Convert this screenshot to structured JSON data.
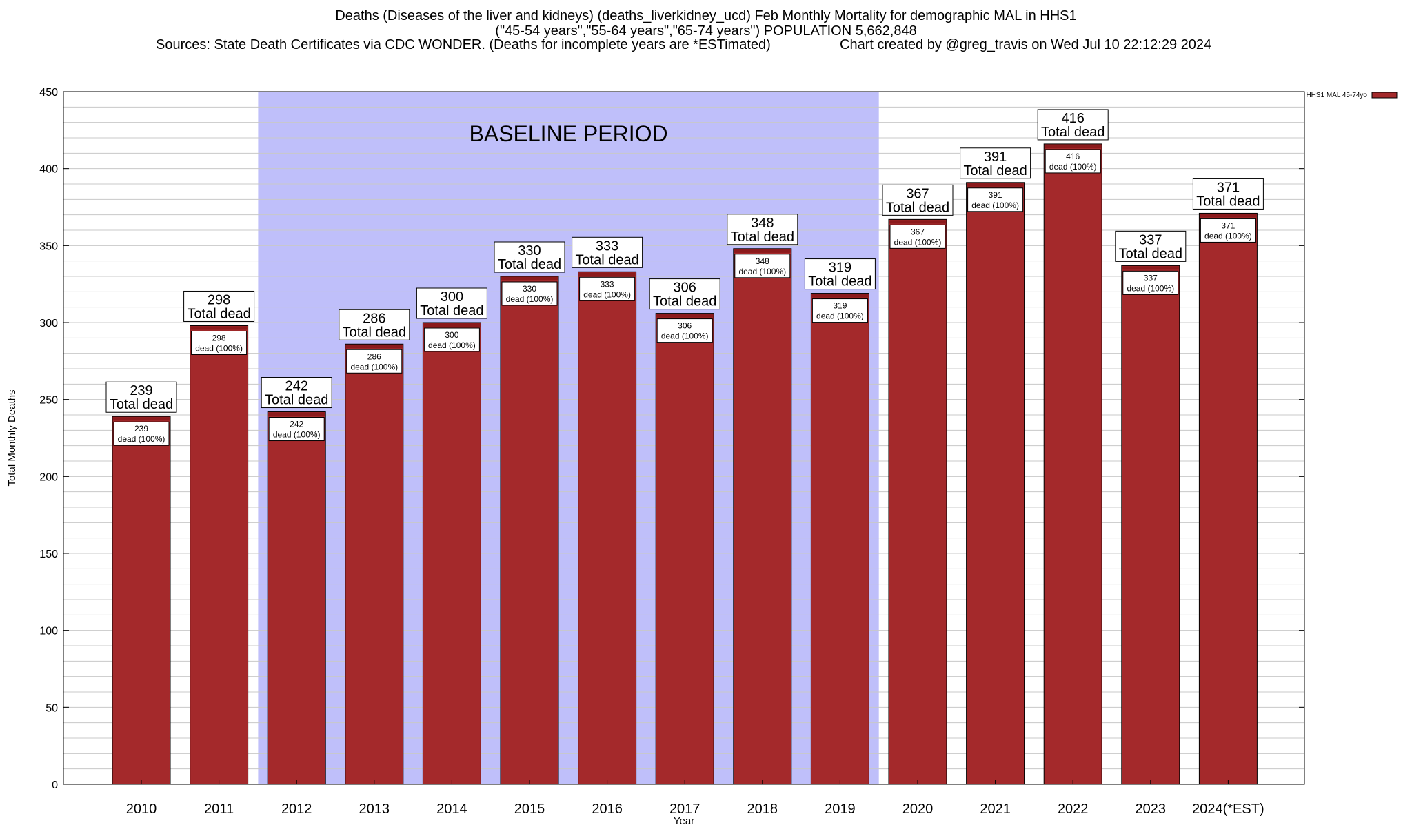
{
  "header": {
    "title_line1": "Deaths (Diseases of the liver and kidneys) (deaths_liverkidney_ucd) Feb Monthly Mortality for demographic MAL in HHS1",
    "title_line2": "(\"45-54 years\",\"55-64 years\",\"65-74 years\") POPULATION 5,662,848",
    "sources": "Sources: State Death Certificates via CDC WONDER. (Deaths for incomplete years are *ESTimated)",
    "credit": "Chart created by @greg_travis on Wed Jul 10 22:12:29 2024"
  },
  "chart_data": {
    "type": "bar",
    "xlabel": "Year",
    "ylabel": "Total Monthly Deaths",
    "ylim": [
      0,
      450
    ],
    "yticks": [
      0,
      50,
      100,
      150,
      200,
      250,
      300,
      350,
      400,
      450
    ],
    "grid": true,
    "baseline_label": "BASELINE PERIOD",
    "baseline_range": [
      "2012",
      "2019"
    ],
    "categories": [
      "2010",
      "2011",
      "2012",
      "2013",
      "2014",
      "2015",
      "2016",
      "2017",
      "2018",
      "2019",
      "2020",
      "2021",
      "2022",
      "2023",
      "2024(*EST)"
    ],
    "series": [
      {
        "name": "HHS1 MAL 45-74yo",
        "color": "#a4292b",
        "values": [
          239,
          298,
          242,
          286,
          300,
          330,
          333,
          306,
          348,
          319,
          367,
          391,
          416,
          337,
          371
        ]
      }
    ],
    "total_label_suffix": "Total dead",
    "inner_label_suffix": "dead (100%)",
    "legend_placement": "top-right",
    "colors": {
      "bar": "#a4292b",
      "bar_top": "#8b1a1c",
      "baseline_shade": "#bfbffa",
      "grid": "#c8c8c8"
    }
  }
}
